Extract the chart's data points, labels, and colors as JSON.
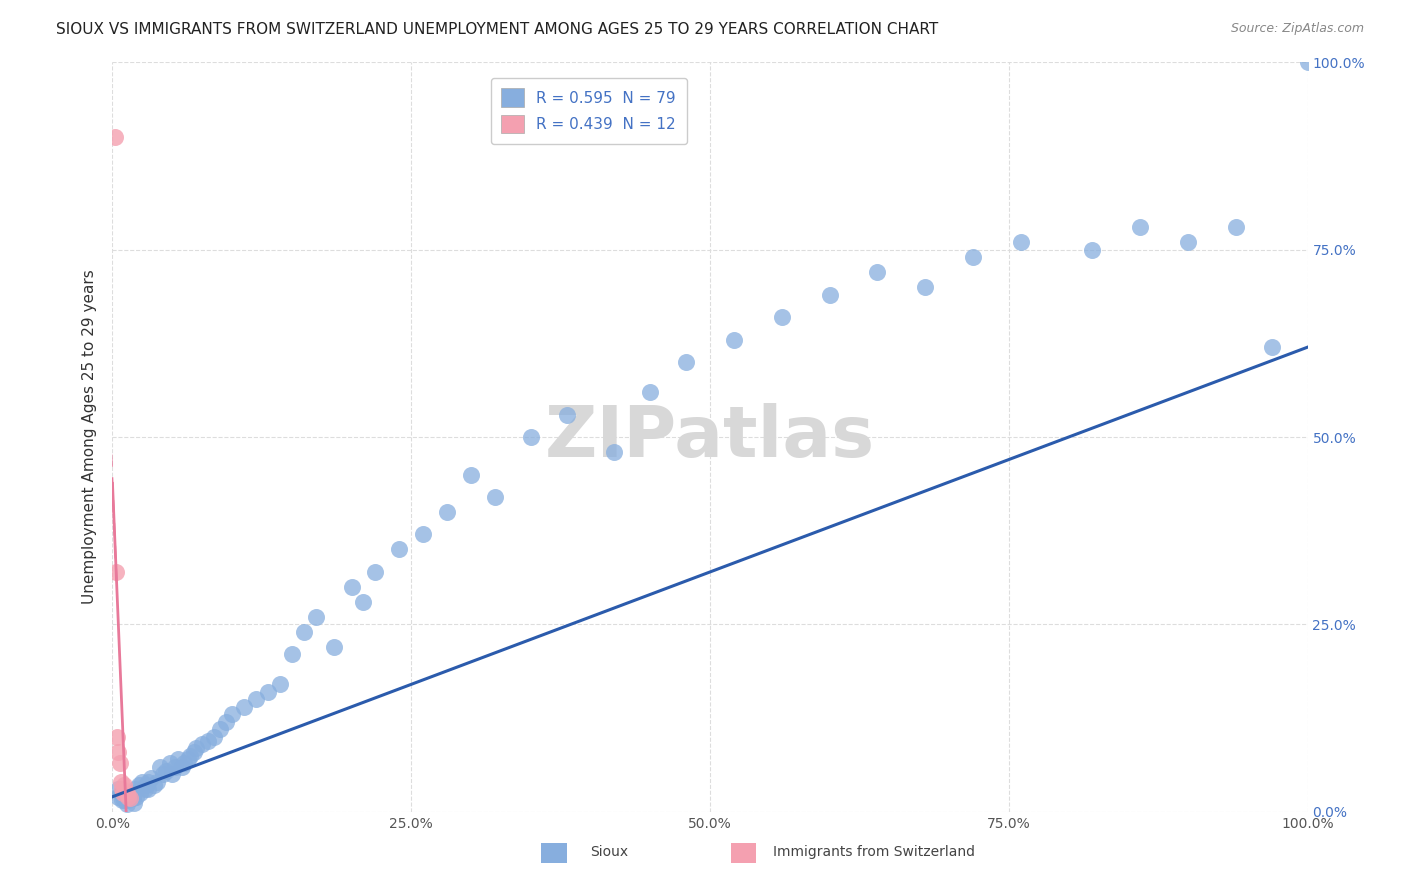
{
  "title": "SIOUX VS IMMIGRANTS FROM SWITZERLAND UNEMPLOYMENT AMONG AGES 25 TO 29 YEARS CORRELATION CHART",
  "source": "Source: ZipAtlas.com",
  "ylabel": "Unemployment Among Ages 25 to 29 years",
  "xlim": [
    0,
    1
  ],
  "ylim": [
    0,
    1
  ],
  "xticks": [
    0.0,
    0.25,
    0.5,
    0.75,
    1.0
  ],
  "yticks": [
    0.0,
    0.25,
    0.5,
    0.75,
    1.0
  ],
  "xtick_labels": [
    "0.0%",
    "25.0%",
    "50.0%",
    "75.0%",
    "100.0%"
  ],
  "ytick_labels_right": [
    "0.0%",
    "25.0%",
    "50.0%",
    "75.0%",
    "100.0%"
  ],
  "sioux_color": "#87AEDE",
  "swiss_color": "#F4A0B0",
  "sioux_line_color": "#2B5BAC",
  "swiss_line_color": "#E8799A",
  "sioux_R": 0.595,
  "sioux_N": 79,
  "swiss_R": 0.439,
  "swiss_N": 12,
  "watermark_text": "ZIPatlas",
  "background_color": "#ffffff",
  "grid_color": "#dddddd",
  "sioux_x": [
    0.005,
    0.005,
    0.007,
    0.008,
    0.009,
    0.01,
    0.01,
    0.012,
    0.013,
    0.013,
    0.015,
    0.016,
    0.017,
    0.018,
    0.019,
    0.02,
    0.022,
    0.023,
    0.025,
    0.027,
    0.028,
    0.03,
    0.03,
    0.032,
    0.035,
    0.037,
    0.04,
    0.042,
    0.045,
    0.048,
    0.05,
    0.052,
    0.055,
    0.058,
    0.06,
    0.063,
    0.065,
    0.068,
    0.07,
    0.075,
    0.08,
    0.085,
    0.09,
    0.095,
    0.1,
    0.11,
    0.12,
    0.13,
    0.14,
    0.15,
    0.16,
    0.17,
    0.185,
    0.2,
    0.21,
    0.22,
    0.24,
    0.26,
    0.28,
    0.3,
    0.32,
    0.35,
    0.38,
    0.42,
    0.45,
    0.48,
    0.52,
    0.56,
    0.6,
    0.64,
    0.68,
    0.72,
    0.76,
    0.82,
    0.86,
    0.9,
    0.94,
    0.97,
    1.0
  ],
  "sioux_y": [
    0.03,
    0.02,
    0.025,
    0.015,
    0.02,
    0.015,
    0.025,
    0.01,
    0.02,
    0.015,
    0.02,
    0.025,
    0.018,
    0.012,
    0.03,
    0.02,
    0.035,
    0.025,
    0.04,
    0.03,
    0.035,
    0.04,
    0.03,
    0.045,
    0.035,
    0.04,
    0.06,
    0.05,
    0.055,
    0.065,
    0.05,
    0.06,
    0.07,
    0.06,
    0.065,
    0.07,
    0.075,
    0.08,
    0.085,
    0.09,
    0.095,
    0.1,
    0.11,
    0.12,
    0.13,
    0.14,
    0.15,
    0.16,
    0.17,
    0.21,
    0.24,
    0.26,
    0.22,
    0.3,
    0.28,
    0.32,
    0.35,
    0.37,
    0.4,
    0.45,
    0.42,
    0.5,
    0.53,
    0.48,
    0.56,
    0.6,
    0.63,
    0.66,
    0.69,
    0.72,
    0.7,
    0.74,
    0.76,
    0.75,
    0.78,
    0.76,
    0.78,
    0.62,
    1.0
  ],
  "swiss_x": [
    0.002,
    0.003,
    0.004,
    0.005,
    0.006,
    0.007,
    0.008,
    0.009,
    0.01,
    0.012,
    0.013,
    0.015
  ],
  "swiss_y": [
    0.9,
    0.32,
    0.1,
    0.08,
    0.065,
    0.04,
    0.03,
    0.025,
    0.035,
    0.025,
    0.02,
    0.018
  ],
  "title_fontsize": 11,
  "axis_label_fontsize": 11,
  "tick_fontsize": 10,
  "legend_fontsize": 11,
  "bottom_label_sioux": "Sioux",
  "bottom_label_swiss": "Immigrants from Switzerland"
}
